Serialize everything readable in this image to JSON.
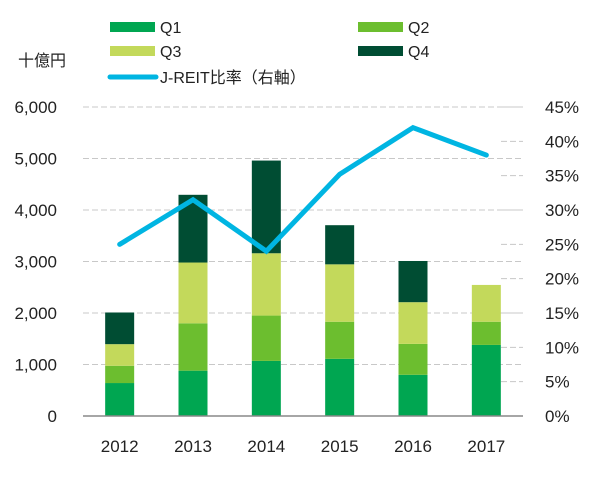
{
  "chart_data": {
    "type": "bar",
    "stacked": true,
    "title": "",
    "y_unit_label": "十億円",
    "categories": [
      "2012",
      "2013",
      "2014",
      "2015",
      "2016",
      "2017"
    ],
    "series": [
      {
        "name": "Q1",
        "color": "#00A651",
        "values": [
          640,
          880,
          1070,
          1110,
          800,
          1380
        ]
      },
      {
        "name": "Q2",
        "color": "#6CBE2F",
        "values": [
          335,
          920,
          880,
          720,
          600,
          450
        ]
      },
      {
        "name": "Q3",
        "color": "#C3D95B",
        "values": [
          420,
          1180,
          1210,
          1115,
          810,
          715
        ]
      },
      {
        "name": "Q4",
        "color": "#004D33",
        "values": [
          615,
          1315,
          1800,
          760,
          800,
          0
        ]
      }
    ],
    "line_series": {
      "name": "J-REIT比率（右軸）",
      "color": "#00B5E2",
      "axis": "right",
      "values": [
        25,
        31.5,
        24,
        35.2,
        42,
        38
      ]
    },
    "ylim": [
      0,
      6000
    ],
    "yticks": [
      0,
      1000,
      2000,
      3000,
      4000,
      5000,
      6000
    ],
    "ytick_labels": [
      "0",
      "1,000",
      "2,000",
      "3,000",
      "4,000",
      "5,000",
      "6,000"
    ],
    "y2lim": [
      0,
      45
    ],
    "y2ticks": [
      0,
      5,
      10,
      15,
      20,
      25,
      30,
      35,
      40,
      45
    ],
    "y2tick_labels": [
      "0%",
      "5%",
      "10%",
      "15%",
      "20%",
      "25%",
      "30%",
      "35%",
      "40%",
      "45%"
    ],
    "xlabel": "",
    "ylabel": "十億円",
    "grid": "horizontal dashed",
    "legend_position": "top"
  }
}
